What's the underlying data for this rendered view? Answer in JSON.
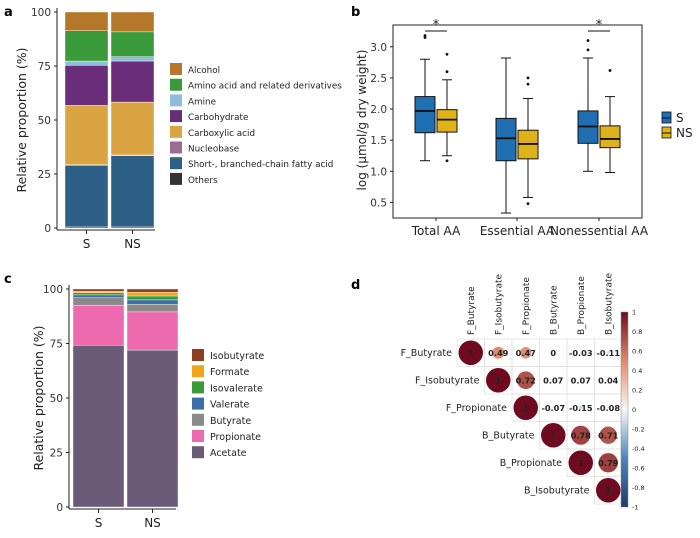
{
  "panel_labels": {
    "a": "a",
    "b": "b",
    "c": "c",
    "d": "d"
  },
  "chart_data": [
    {
      "id": "a",
      "type": "bar",
      "stacked": true,
      "ylabel": "Relative proportion (%)",
      "ylim": [
        0,
        100
      ],
      "yticks": [
        "0",
        "25",
        "50",
        "75",
        "100"
      ],
      "categories": [
        "S",
        "NS"
      ],
      "legend_position": "right",
      "series": [
        {
          "name": "Others",
          "color": "#333333",
          "values": [
            0.5,
            0.5
          ]
        },
        {
          "name": "Short-, branched-chain fatty acid",
          "color": "#2e5f87",
          "values": [
            28.5,
            33
          ]
        },
        {
          "name": "Nucleobase",
          "color": "#9c6b94",
          "values": [
            0.3,
            0.3
          ]
        },
        {
          "name": "Carboxylic acid",
          "color": "#d9a441",
          "values": [
            27.5,
            24.5
          ]
        },
        {
          "name": "Carbohydrate",
          "color": "#6a2d7a",
          "values": [
            18.5,
            19
          ]
        },
        {
          "name": "Amine",
          "color": "#8fbcdc",
          "values": [
            2,
            2
          ]
        },
        {
          "name": "Amino acid and related derivatives",
          "color": "#3a9a3a",
          "values": [
            14,
            11.5
          ]
        },
        {
          "name": "Alcohol",
          "color": "#b5782a",
          "values": [
            8.7,
            9.2
          ]
        }
      ],
      "legend_order": [
        "Alcohol",
        "Amino acid and related derivatives",
        "Amine",
        "Carbohydrate",
        "Carboxylic acid",
        "Nucleobase",
        "Short-, branched-chain fatty acid",
        "Others"
      ]
    },
    {
      "id": "b",
      "type": "boxplot",
      "ylabel": "log (µmol/g dry weight)",
      "ylim": [
        0.25,
        3.35
      ],
      "yticks": [
        0.5,
        1.0,
        1.5,
        2.0,
        2.5,
        3.0
      ],
      "ytick_labels": [
        "0.5",
        "1.0",
        "1.5",
        "2.0",
        "2.5",
        "3.0"
      ],
      "categories": [
        "Total AA",
        "Essential AA",
        "Nonessential AA"
      ],
      "legend": [
        {
          "name": "S",
          "color": "#1f6fb2"
        },
        {
          "name": "NS",
          "color": "#e0b219"
        }
      ],
      "significance": [
        {
          "group": "Total AA",
          "label": "*"
        },
        {
          "group": "Nonessential AA",
          "label": "*"
        }
      ],
      "boxes": [
        {
          "group": "Total AA",
          "series": "S",
          "min": 1.17,
          "q1": 1.62,
          "median": 1.97,
          "q3": 2.2,
          "max": 2.8,
          "outliers": [
            3.15,
            3.18
          ]
        },
        {
          "group": "Total AA",
          "series": "NS",
          "min": 1.25,
          "q1": 1.63,
          "median": 1.83,
          "q3": 1.99,
          "max": 2.47,
          "outliers": [
            1.17,
            2.6,
            2.88
          ]
        },
        {
          "group": "Essential AA",
          "series": "S",
          "min": 0.33,
          "q1": 1.17,
          "median": 1.53,
          "q3": 1.85,
          "max": 2.82,
          "outliers": []
        },
        {
          "group": "Essential AA",
          "series": "NS",
          "min": 0.58,
          "q1": 1.2,
          "median": 1.44,
          "q3": 1.66,
          "max": 2.17,
          "outliers": [
            0.48,
            2.4,
            2.5
          ]
        },
        {
          "group": "Nonessential AA",
          "series": "S",
          "min": 1.0,
          "q1": 1.45,
          "median": 1.72,
          "q3": 1.97,
          "max": 2.82,
          "outliers": [
            2.95,
            3.1
          ]
        },
        {
          "group": "Nonessential AA",
          "series": "NS",
          "min": 0.98,
          "q1": 1.38,
          "median": 1.52,
          "q3": 1.73,
          "max": 2.2,
          "outliers": [
            2.62
          ]
        }
      ]
    },
    {
      "id": "c",
      "type": "bar",
      "stacked": true,
      "ylabel": "Relative proportion (%)",
      "ylim": [
        0,
        100
      ],
      "yticks": [
        "0",
        "25",
        "50",
        "75",
        "100"
      ],
      "categories": [
        "S",
        "NS"
      ],
      "legend_position": "right",
      "series": [
        {
          "name": "Acetate",
          "color": "#6b5a78",
          "values": [
            74.2,
            72
          ]
        },
        {
          "name": "Propionate",
          "color": "#ee6ab0",
          "values": [
            18.3,
            17.5
          ]
        },
        {
          "name": "Butyrate",
          "color": "#8a8a8a",
          "values": [
            3.5,
            3.5
          ]
        },
        {
          "name": "Valerate",
          "color": "#3a6ea8",
          "values": [
            1.3,
            2
          ]
        },
        {
          "name": "Isovalerate",
          "color": "#3a9a3a",
          "values": [
            1,
            1.8
          ]
        },
        {
          "name": "Formate",
          "color": "#f2a51a",
          "values": [
            0.7,
            1.7
          ]
        },
        {
          "name": "Isobutyrate",
          "color": "#8b3e20",
          "values": [
            1,
            1.5
          ]
        }
      ],
      "legend_order": [
        "Isobutyrate",
        "Formate",
        "Isovalerate",
        "Valerate",
        "Butyrate",
        "Propionate",
        "Acetate"
      ]
    },
    {
      "id": "d",
      "type": "heatmap",
      "variables": [
        "F_Butyrate",
        "F_Isobutyrate",
        "F_Propionate",
        "B_Butyrate",
        "B_Propionate",
        "B_Isobutyrate"
      ],
      "matrix_upper": [
        [
          1,
          0.49,
          0.47,
          0,
          -0.03,
          -0.11
        ],
        [
          null,
          1,
          0.72,
          0.07,
          0.07,
          0.04
        ],
        [
          null,
          null,
          1,
          -0.07,
          -0.15,
          -0.08
        ],
        [
          null,
          null,
          null,
          1,
          0.78,
          0.71
        ],
        [
          null,
          null,
          null,
          null,
          1,
          0.79
        ],
        [
          null,
          null,
          null,
          null,
          null,
          1
        ]
      ],
      "cell_labels": [
        [
          "1",
          "0.49",
          "0.47",
          "0",
          "-0.03",
          "-0.11"
        ],
        [
          null,
          "1",
          "0.72",
          "0.07",
          "0.07",
          "0.04"
        ],
        [
          null,
          null,
          "1",
          "-0.07",
          "-0.15",
          "-0.08"
        ],
        [
          null,
          null,
          null,
          "1",
          "0.78",
          "0.71"
        ],
        [
          null,
          null,
          null,
          null,
          "1",
          "0.79"
        ],
        [
          null,
          null,
          null,
          null,
          null,
          "1"
        ]
      ],
      "colorbar_ticks": [
        "1",
        "0.8",
        "0.6",
        "0.4",
        "0.2",
        "0",
        "-0.2",
        "-0.4",
        "-0.6",
        "-0.8",
        "-1"
      ],
      "colorbar_range": [
        -1,
        1
      ]
    }
  ]
}
